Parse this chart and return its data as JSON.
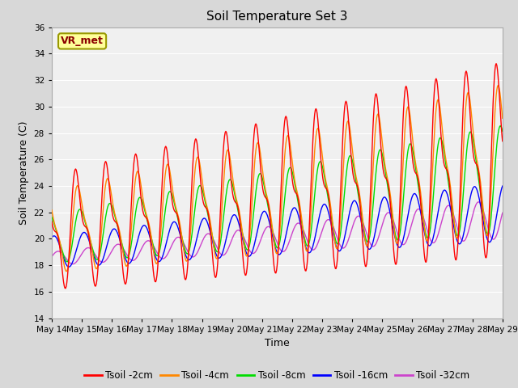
{
  "title": "Soil Temperature Set 3",
  "xlabel": "Time",
  "ylabel": "Soil Temperature (C)",
  "ylim": [
    14,
    36
  ],
  "yticks": [
    14,
    16,
    18,
    20,
    22,
    24,
    26,
    28,
    30,
    32,
    34,
    36
  ],
  "xlim": [
    0,
    15
  ],
  "series_colors": [
    "#ff0000",
    "#ff8800",
    "#00dd00",
    "#0000ff",
    "#cc44cc"
  ],
  "series_labels": [
    "Tsoil -2cm",
    "Tsoil -4cm",
    "Tsoil -8cm",
    "Tsoil -16cm",
    "Tsoil -32cm"
  ],
  "annotation_text": "VR_met",
  "annotation_color": "#8B0000",
  "annotation_bgcolor": "#ffff99",
  "annotation_edgecolor": "#999900",
  "fig_facecolor": "#d8d8d8",
  "plot_facecolor": "#f0f0f0",
  "grid_color": "#ffffff",
  "title_fontsize": 11,
  "axis_label_fontsize": 9,
  "tick_fontsize": 7.5,
  "legend_fontsize": 8.5
}
